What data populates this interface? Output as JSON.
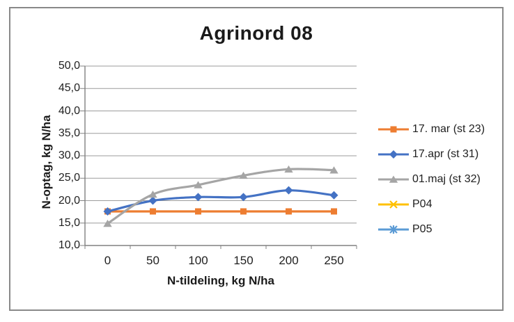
{
  "chart_data": {
    "type": "line",
    "title": "Agrinord 08",
    "xlabel": "N-tildeling, kg N/ha",
    "ylabel": "N-optag, kg N/ha",
    "categories": [
      0,
      50,
      100,
      150,
      200,
      250
    ],
    "x_tick_labels": [
      "0",
      "50",
      "100",
      "150",
      "200",
      "250"
    ],
    "y_tick_labels": [
      "50,0",
      "45,0",
      "40,0",
      "35,0",
      "30,0",
      "25,0",
      "20,0",
      "15,0",
      "10,0"
    ],
    "ylim": [
      10,
      50
    ],
    "ytick_step": 5,
    "grid": true,
    "legend_position": "right",
    "series": [
      {
        "name": "17. mar (st 23)",
        "color": "#ED7D31",
        "marker": "square",
        "values": [
          17.6,
          17.6,
          17.6,
          17.6,
          17.6,
          17.6
        ]
      },
      {
        "name": "17.apr (st 31)",
        "color": "#4472C4",
        "marker": "diamond",
        "values": [
          17.6,
          20.0,
          20.8,
          20.8,
          22.3,
          21.2
        ]
      },
      {
        "name": "01.maj (st 32)",
        "color": "#A5A5A5",
        "marker": "triangle",
        "values": [
          14.9,
          21.4,
          23.5,
          25.6,
          27.0,
          26.8
        ]
      },
      {
        "name": "P04",
        "color": "#FFC000",
        "marker": "x",
        "values": []
      },
      {
        "name": "P05",
        "color": "#5B9BD5",
        "marker": "asterisk",
        "values": []
      }
    ],
    "colors": {
      "gridline": "#9B9B9B",
      "axis": "#808080",
      "frame_border": "#898989",
      "text": "#1f1f1f"
    }
  }
}
